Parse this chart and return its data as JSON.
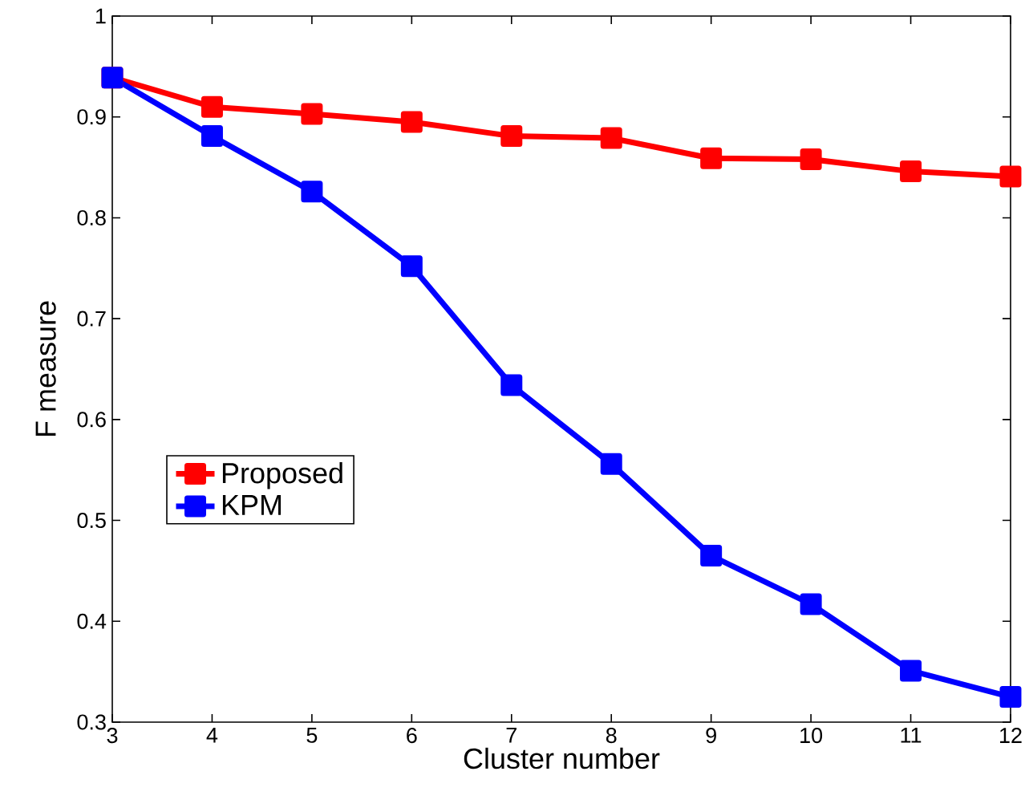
{
  "chart_data": {
    "type": "line",
    "xlabel": "Cluster number",
    "ylabel": "F measure",
    "x": [
      3,
      4,
      5,
      6,
      7,
      8,
      9,
      10,
      11,
      12
    ],
    "series": [
      {
        "name": "Proposed",
        "color": "#ff0000",
        "values": [
          0.939,
          0.91,
          0.903,
          0.895,
          0.881,
          0.879,
          0.859,
          0.858,
          0.846,
          0.841
        ]
      },
      {
        "name": "KPM",
        "color": "#0000ff",
        "values": [
          0.939,
          0.881,
          0.826,
          0.752,
          0.634,
          0.556,
          0.465,
          0.417,
          0.351,
          0.325
        ]
      }
    ],
    "xlim": [
      3,
      12
    ],
    "ylim": [
      0.3,
      1
    ],
    "xticks": [
      3,
      4,
      5,
      6,
      7,
      8,
      9,
      10,
      11,
      12
    ],
    "yticks": [
      0.3,
      0.4,
      0.5,
      0.6,
      0.7,
      0.8,
      0.9,
      1
    ],
    "legend": "bottom left",
    "marker": "square",
    "line_style": "solid",
    "grid": false
  }
}
